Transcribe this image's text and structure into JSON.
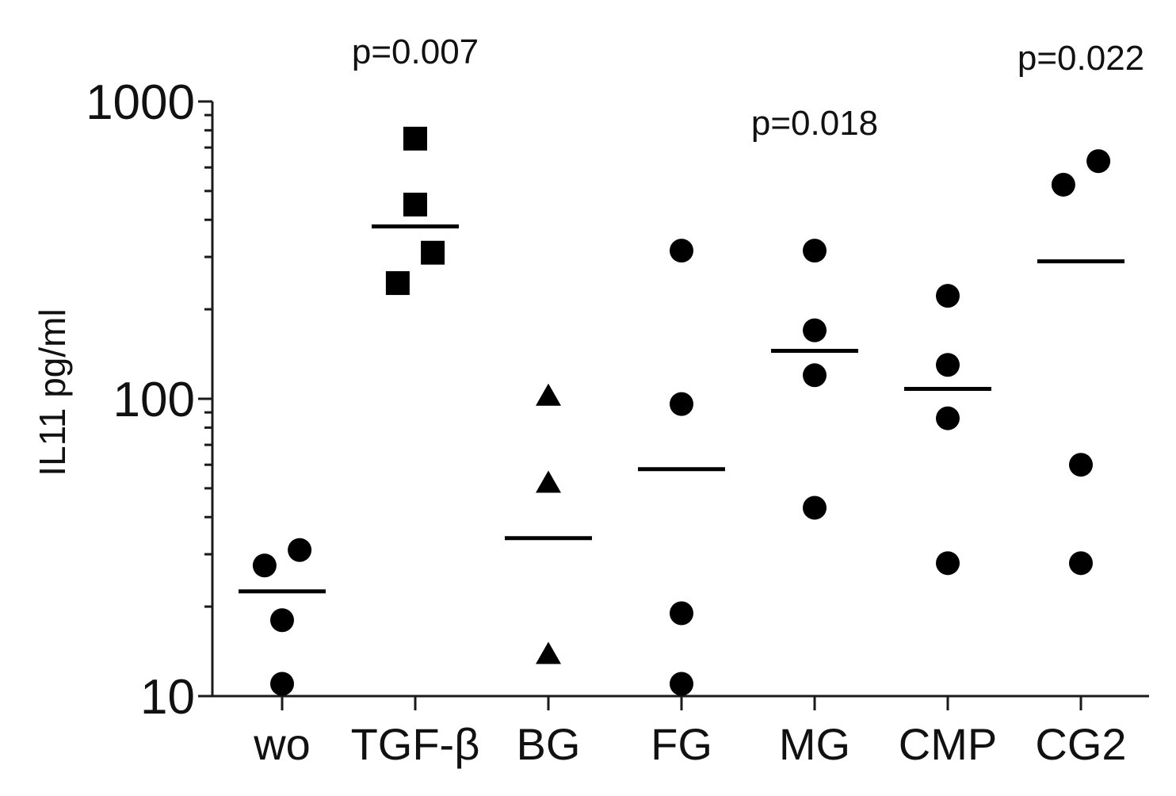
{
  "chart_data": {
    "type": "scatter",
    "title": "",
    "xlabel": "",
    "ylabel": "IL11 pg/ml",
    "yscale": "log",
    "ylim": [
      10,
      1000
    ],
    "yticks": [
      {
        "value": 10,
        "label": "10"
      },
      {
        "value": 100,
        "label": "100"
      },
      {
        "value": 1000,
        "label": "1000"
      }
    ],
    "grid": false,
    "categories": [
      "wo",
      "TGF-β",
      "BG",
      "FG",
      "MG",
      "CMP",
      "CG2"
    ],
    "groups": [
      {
        "name": "wo",
        "marker": "circle",
        "mean": 22.5,
        "points": [
          {
            "offset": -0.13,
            "value": 27.5
          },
          {
            "offset": 0.13,
            "value": 31
          },
          {
            "offset": 0.0,
            "value": 18
          },
          {
            "offset": 0.0,
            "value": 11
          }
        ]
      },
      {
        "name": "TGF-β",
        "marker": "square",
        "mean": 380,
        "points": [
          {
            "offset": 0.0,
            "value": 750
          },
          {
            "offset": 0.0,
            "value": 450
          },
          {
            "offset": 0.13,
            "value": 310
          },
          {
            "offset": -0.13,
            "value": 245
          }
        ]
      },
      {
        "name": "BG",
        "marker": "triangle",
        "mean": 34,
        "points": [
          {
            "offset": 0.0,
            "value": 102
          },
          {
            "offset": 0.0,
            "value": 52
          },
          {
            "offset": 0.0,
            "value": 13.8
          }
        ]
      },
      {
        "name": "FG",
        "marker": "circle",
        "mean": 58,
        "points": [
          {
            "offset": 0.0,
            "value": 315
          },
          {
            "offset": 0.0,
            "value": 96
          },
          {
            "offset": 0.0,
            "value": 19
          },
          {
            "offset": 0.0,
            "value": 11
          }
        ]
      },
      {
        "name": "MG",
        "marker": "circle",
        "mean": 145,
        "points": [
          {
            "offset": 0.0,
            "value": 315
          },
          {
            "offset": 0.0,
            "value": 170
          },
          {
            "offset": 0.0,
            "value": 120
          },
          {
            "offset": 0.0,
            "value": 43
          }
        ]
      },
      {
        "name": "CMP",
        "marker": "circle",
        "mean": 108,
        "points": [
          {
            "offset": 0.0,
            "value": 222
          },
          {
            "offset": 0.0,
            "value": 130
          },
          {
            "offset": 0.0,
            "value": 86
          },
          {
            "offset": 0.0,
            "value": 28
          }
        ]
      },
      {
        "name": "CG2",
        "marker": "circle",
        "mean": 290,
        "points": [
          {
            "offset": -0.13,
            "value": 525
          },
          {
            "offset": 0.13,
            "value": 630
          },
          {
            "offset": 0.0,
            "value": 60
          },
          {
            "offset": 0.0,
            "value": 28
          }
        ]
      }
    ],
    "annotations": [
      {
        "text": "p=0.007",
        "group": "TGF-β"
      },
      {
        "text": "p=0.018",
        "group": "MG"
      },
      {
        "text": "p=0.022",
        "group": "CG2"
      }
    ]
  }
}
